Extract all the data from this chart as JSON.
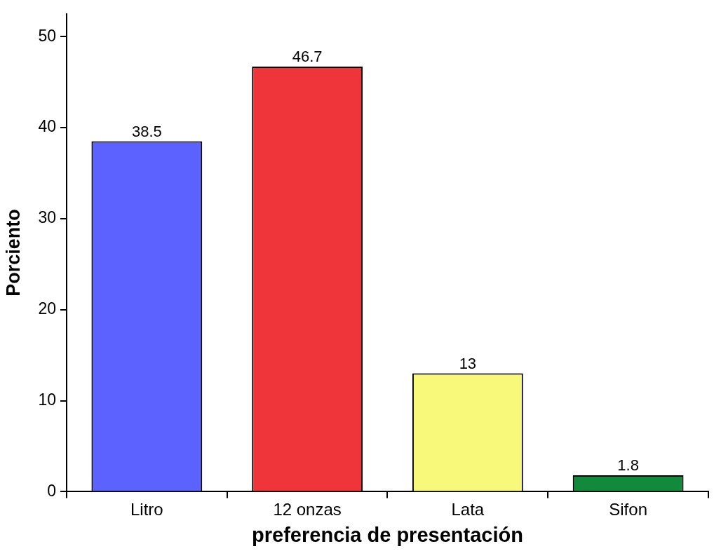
{
  "chart_data": {
    "type": "bar",
    "xlabel": "preferencia de presentación",
    "ylabel": "Porciento",
    "categories": [
      "Litro",
      "12 onzas",
      "Lata",
      "Sifon"
    ],
    "values": [
      38.5,
      46.7,
      13,
      1.8
    ],
    "colors": [
      "#5b62ff",
      "#f0353a",
      "#f8f87a",
      "#118a3c"
    ],
    "ylim": [
      0,
      52.5
    ],
    "yticks": [
      0,
      10,
      20,
      30,
      40,
      50
    ],
    "grid": false,
    "legend": false,
    "data_labels": true
  }
}
